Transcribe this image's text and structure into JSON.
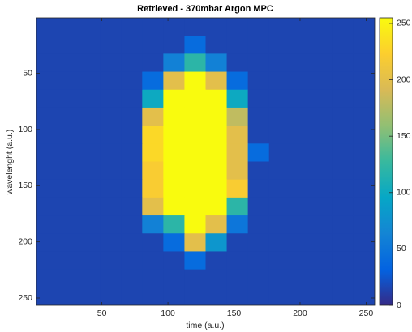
{
  "chart_data": {
    "type": "heatmap",
    "title": "Retrieved - 370mbar Argon MPC",
    "xlabel": "time (a.u.)",
    "ylabel": "wavelenght (a.u.)",
    "x": [
      8.5,
      24.5,
      40.5,
      56.5,
      72.5,
      88.5,
      104.5,
      120.5,
      136.5,
      152.5,
      168.5,
      184.5,
      200.5,
      216.5,
      232.5,
      248.5
    ],
    "y": [
      8.5,
      24.5,
      40.5,
      56.5,
      72.5,
      88.5,
      104.5,
      120.5,
      136.5,
      152.5,
      168.5,
      184.5,
      200.5,
      216.5,
      232.5,
      248.5
    ],
    "z": [
      [
        15,
        15,
        15,
        15,
        15,
        15,
        15,
        15,
        15,
        15,
        15,
        15,
        15,
        15,
        15,
        15
      ],
      [
        15,
        15,
        15,
        15,
        15,
        15,
        15,
        40,
        15,
        15,
        15,
        15,
        15,
        15,
        15,
        15
      ],
      [
        15,
        15,
        15,
        15,
        15,
        15,
        60,
        120,
        60,
        15,
        15,
        15,
        15,
        15,
        15,
        15
      ],
      [
        15,
        15,
        15,
        15,
        15,
        40,
        200,
        255,
        200,
        40,
        15,
        15,
        15,
        15,
        15,
        15
      ],
      [
        15,
        15,
        15,
        15,
        15,
        100,
        255,
        255,
        255,
        100,
        15,
        15,
        15,
        15,
        15,
        15
      ],
      [
        15,
        15,
        15,
        15,
        15,
        200,
        255,
        255,
        255,
        180,
        15,
        15,
        15,
        15,
        15,
        15
      ],
      [
        15,
        15,
        15,
        15,
        15,
        230,
        255,
        255,
        255,
        200,
        15,
        15,
        15,
        15,
        15,
        15
      ],
      [
        15,
        15,
        15,
        15,
        15,
        230,
        255,
        255,
        255,
        200,
        40,
        15,
        15,
        15,
        15,
        15
      ],
      [
        15,
        15,
        15,
        15,
        15,
        220,
        255,
        255,
        255,
        200,
        15,
        15,
        15,
        15,
        15,
        15
      ],
      [
        15,
        15,
        15,
        15,
        15,
        220,
        255,
        255,
        255,
        220,
        15,
        15,
        15,
        15,
        15,
        15
      ],
      [
        15,
        15,
        15,
        15,
        15,
        200,
        255,
        255,
        255,
        120,
        15,
        15,
        15,
        15,
        15,
        15
      ],
      [
        15,
        15,
        15,
        15,
        15,
        60,
        120,
        255,
        200,
        50,
        15,
        15,
        15,
        15,
        15,
        15
      ],
      [
        15,
        15,
        15,
        15,
        15,
        15,
        40,
        200,
        80,
        15,
        15,
        15,
        15,
        15,
        15,
        15
      ],
      [
        15,
        15,
        15,
        15,
        15,
        15,
        15,
        40,
        15,
        15,
        15,
        15,
        15,
        15,
        15,
        15
      ],
      [
        15,
        15,
        15,
        15,
        15,
        15,
        15,
        15,
        15,
        15,
        15,
        15,
        15,
        15,
        15,
        15
      ],
      [
        15,
        15,
        15,
        15,
        15,
        15,
        15,
        15,
        15,
        15,
        15,
        15,
        15,
        15,
        15,
        15
      ]
    ],
    "xlim": [
      0.5,
      256.5
    ],
    "ylim": [
      0.5,
      256.5
    ],
    "y_reversed": true,
    "xticks": [
      50,
      100,
      150,
      200,
      250
    ],
    "yticks": [
      50,
      100,
      150,
      200,
      250
    ],
    "colormap": "parula",
    "clim": [
      0,
      255
    ],
    "cticks": [
      0,
      50,
      100,
      150,
      200,
      250
    ]
  }
}
